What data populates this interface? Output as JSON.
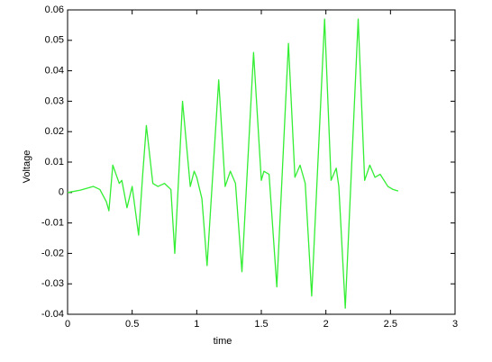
{
  "chart_data": {
    "type": "line",
    "xlabel": "time",
    "ylabel": "Voltage",
    "x": [
      0,
      0.1,
      0.2,
      0.25,
      0.3,
      0.32,
      0.35,
      0.4,
      0.42,
      0.46,
      0.5,
      0.55,
      0.58,
      0.61,
      0.66,
      0.7,
      0.75,
      0.8,
      0.83,
      0.89,
      0.95,
      0.98,
      1.0,
      1.04,
      1.08,
      1.17,
      1.22,
      1.26,
      1.3,
      1.35,
      1.44,
      1.5,
      1.52,
      1.56,
      1.62,
      1.71,
      1.76,
      1.8,
      1.84,
      1.89,
      1.99,
      2.04,
      2.08,
      2.1,
      2.15,
      2.25,
      2.3,
      2.34,
      2.38,
      2.42,
      2.48,
      2.52,
      2.56
    ],
    "series": [
      {
        "name": "Voltage",
        "color": "#33ee33",
        "values": [
          0,
          0.0008,
          0.002,
          0.001,
          -0.003,
          -0.006,
          0.009,
          0.003,
          0.004,
          -0.005,
          0.002,
          -0.014,
          0.005,
          0.022,
          0.003,
          0.002,
          0.003,
          0.001,
          -0.02,
          0.03,
          0.002,
          0.007,
          0.005,
          -0.002,
          -0.024,
          0.037,
          0.002,
          0.007,
          0.003,
          -0.026,
          0.046,
          0.004,
          0.007,
          0.006,
          -0.031,
          0.049,
          0.005,
          0.009,
          0.003,
          -0.034,
          0.057,
          0.004,
          0.008,
          0.002,
          -0.038,
          0.057,
          0.004,
          0.009,
          0.005,
          0.006,
          0.002,
          0.001,
          0.0005
        ]
      }
    ],
    "xlim": [
      0,
      3
    ],
    "xticks": [
      0,
      0.5,
      1,
      1.5,
      2,
      2.5,
      3
    ],
    "ylim": [
      -0.04,
      0.06
    ],
    "yticks": [
      -0.04,
      -0.03,
      -0.02,
      -0.01,
      0,
      0.01,
      0.02,
      0.03,
      0.04,
      0.05,
      0.06
    ]
  }
}
